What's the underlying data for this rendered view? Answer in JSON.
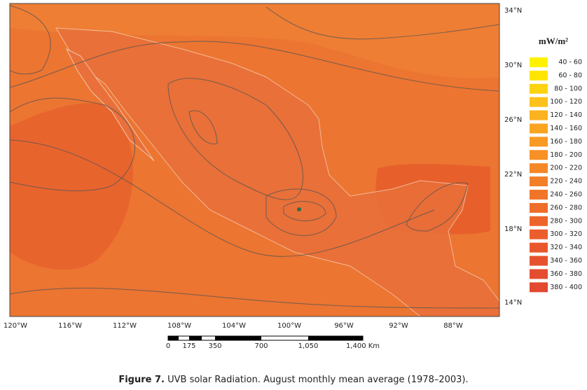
{
  "map": {
    "latitude_labels": [
      "34°N",
      "30°N",
      "26°N",
      "22°N",
      "18°N",
      "14°N"
    ],
    "longitude_labels": [
      "120°W",
      "116°W",
      "112°W",
      "108°W",
      "104°W",
      "100°W",
      "96°W",
      "92°W",
      "88°W"
    ],
    "scale_bar": {
      "labels": [
        "0",
        "175",
        "350",
        "700",
        "1,050",
        "1,400 Km"
      ]
    }
  },
  "legend": {
    "title": "mW/m²",
    "items": [
      {
        "label": "40 - 60",
        "color": "#fff200"
      },
      {
        "label": "60 - 80",
        "color": "#ffe500"
      },
      {
        "label": "80 - 100",
        "color": "#fdd20f"
      },
      {
        "label": "100 - 120",
        "color": "#fcc11a"
      },
      {
        "label": "120 - 140",
        "color": "#fbb21f"
      },
      {
        "label": "140 - 160",
        "color": "#f9a522"
      },
      {
        "label": "160 - 180",
        "color": "#f89a24"
      },
      {
        "label": "180 - 200",
        "color": "#f79025"
      },
      {
        "label": "200 - 220",
        "color": "#f58727"
      },
      {
        "label": "220 - 240",
        "color": "#f37e28"
      },
      {
        "label": "240 - 260",
        "color": "#f17529"
      },
      {
        "label": "260 - 280",
        "color": "#ef6d2a"
      },
      {
        "label": "280 - 300",
        "color": "#ed652b"
      },
      {
        "label": "300 - 320",
        "color": "#eb5e2c"
      },
      {
        "label": "320 - 340",
        "color": "#e9582d"
      },
      {
        "label": "340 - 360",
        "color": "#e7522e"
      },
      {
        "label": "360 - 380",
        "color": "#e54d2f"
      },
      {
        "label": "380 - 400",
        "color": "#e34830"
      }
    ]
  },
  "caption": {
    "label": "Figure 7.",
    "text": "UVB solar Radiation. August monthly mean average (1978–2003)."
  }
}
